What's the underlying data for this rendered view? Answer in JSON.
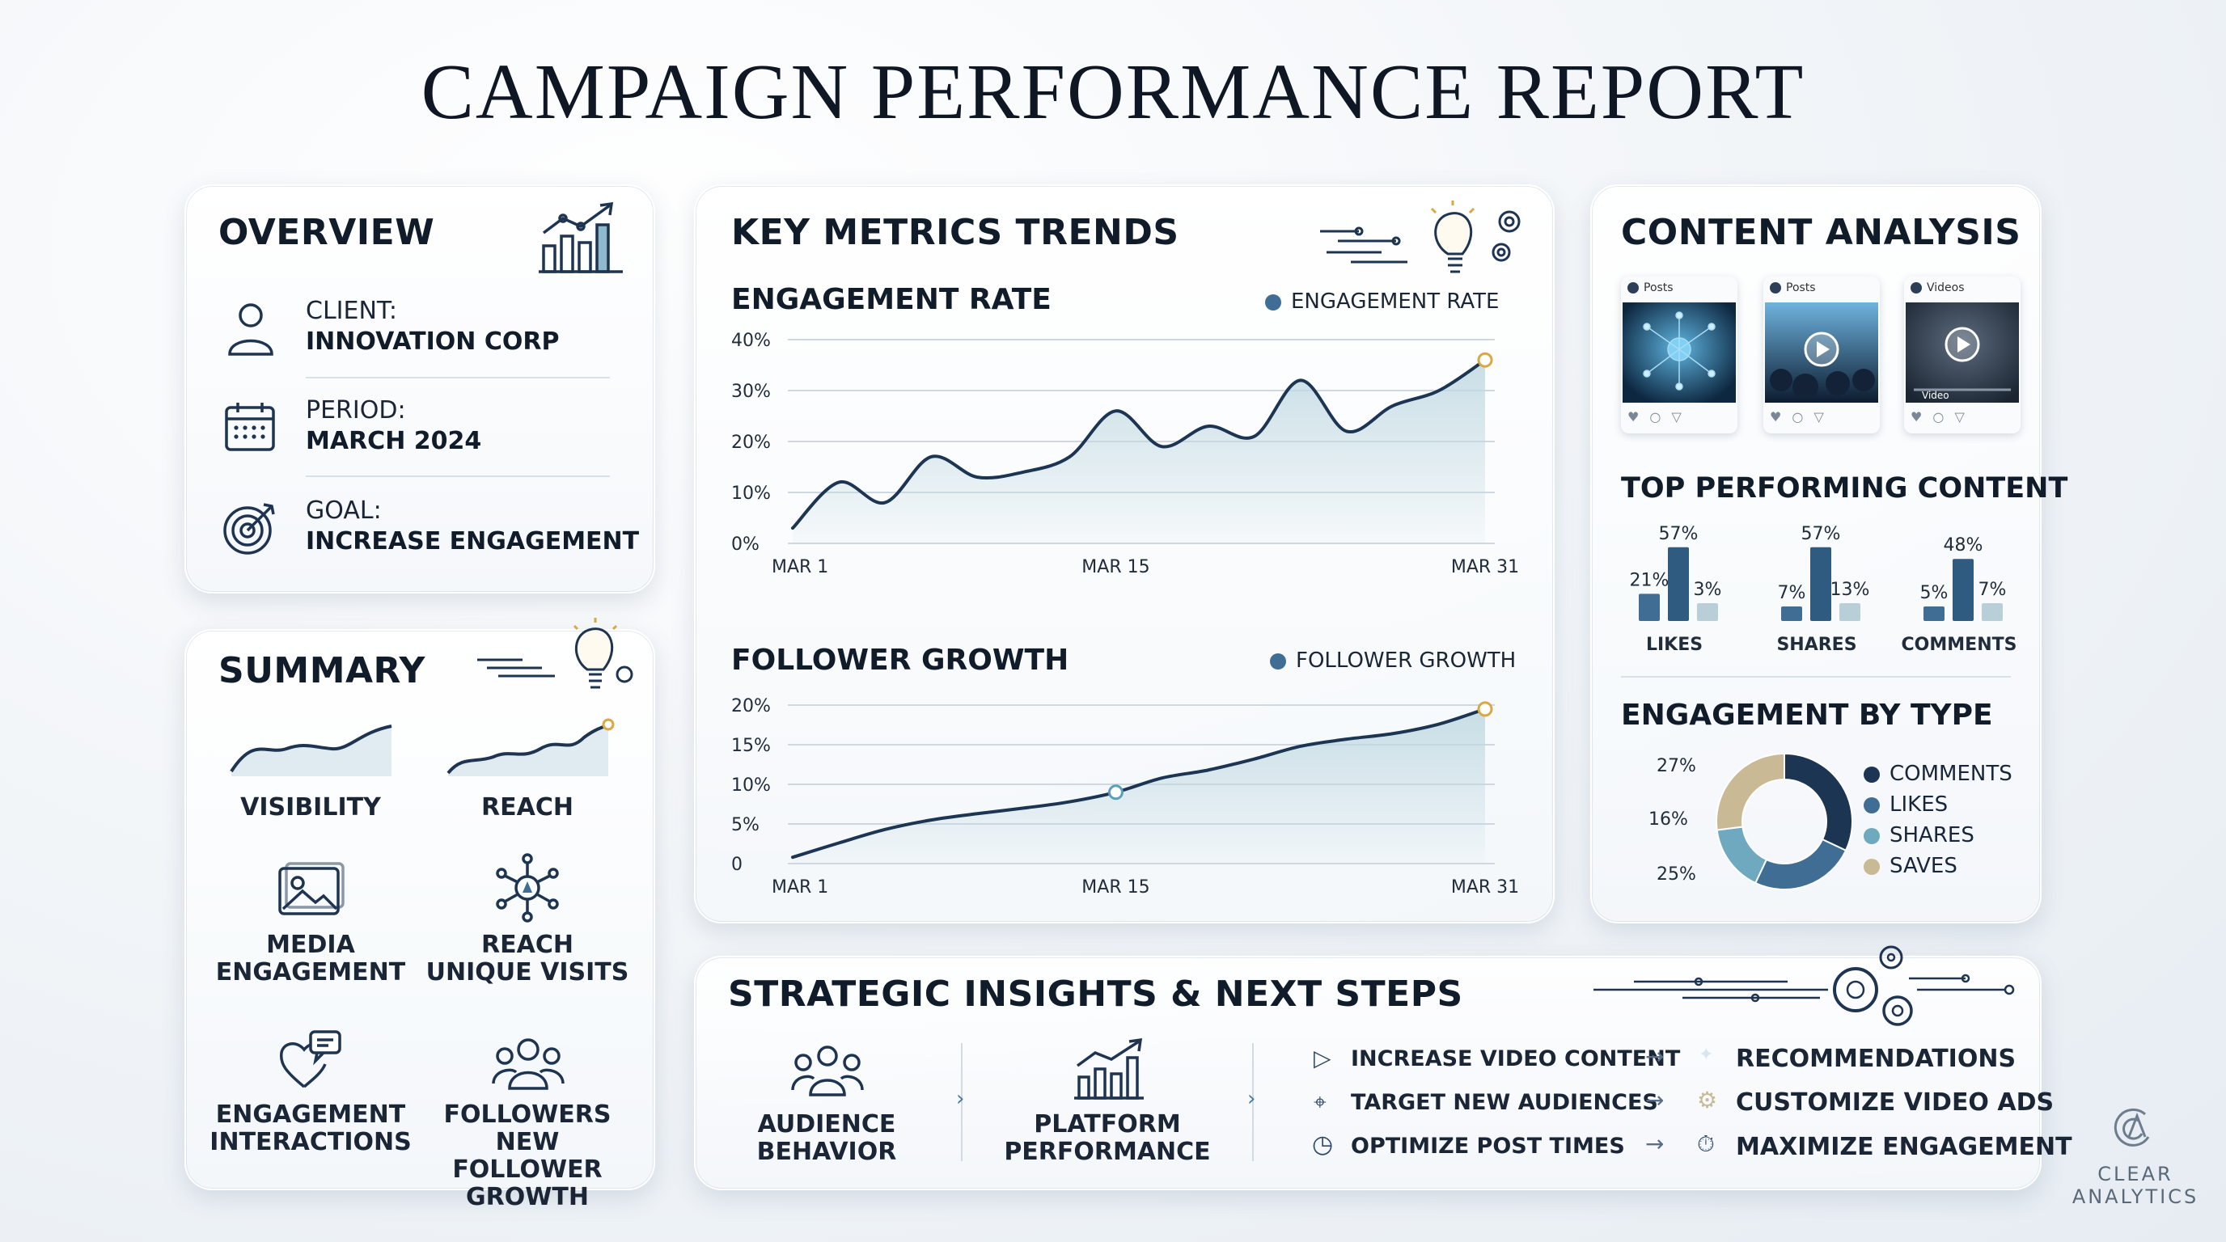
{
  "title": "CAMPAIGN PERFORMANCE REPORT",
  "overview": {
    "heading": "OVERVIEW",
    "client_label": "CLIENT:",
    "client_value": "INNOVATION CORP",
    "period_label": "PERIOD:",
    "period_value": "MARCH 2024",
    "goal_label": "GOAL:",
    "goal_value": "INCREASE ENGAGEMENT"
  },
  "summary": {
    "heading": "SUMMARY",
    "items": [
      {
        "label": "VISIBILITY"
      },
      {
        "label": "REACH"
      },
      {
        "label": "MEDIA\nENGAGEMENT"
      },
      {
        "label": "REACH\nUNIQUE VISITS"
      },
      {
        "label": "ENGAGEMENT\nINTERACTIONS"
      },
      {
        "label": "FOLLOWERS\nNEW FOLLOWER\nGROWTH"
      }
    ]
  },
  "key_metrics": {
    "heading": "KEY METRICS TRENDS",
    "engagement": {
      "heading": "ENGAGEMENT RATE",
      "legend": "ENGAGEMENT RATE",
      "yticks": [
        "40%",
        "30%",
        "20%",
        "10%",
        "0%"
      ],
      "xticks": [
        "MAR 1",
        "MAR 15",
        "MAR 31"
      ]
    },
    "followers": {
      "heading": "FOLLOWER GROWTH",
      "legend": "FOLLOWER GROWTH",
      "yticks": [
        "20%",
        "15%",
        "10%",
        "5%",
        "0"
      ],
      "xticks": [
        "MAR 1",
        "MAR 15",
        "MAR 31"
      ]
    }
  },
  "content_analysis": {
    "heading": "CONTENT ANALYSIS",
    "thumbnails": [
      {
        "label": "Posts"
      },
      {
        "label": "Posts"
      },
      {
        "label": "Videos",
        "caption": "Video"
      }
    ],
    "top_heading": "TOP PERFORMING CONTENT",
    "top_groups": [
      {
        "label": "LIKES",
        "values": [
          "21%",
          "57%",
          "3%"
        ]
      },
      {
        "label": "SHARES",
        "values": [
          "7%",
          "57%",
          "13%"
        ]
      },
      {
        "label": "COMMENTS",
        "values": [
          "5%",
          "48%",
          "7%"
        ]
      }
    ],
    "type_heading": "ENGAGEMENT BY TYPE",
    "donut_labels": [
      "27%",
      "16%",
      "25%"
    ],
    "legend": [
      "COMMENTS",
      "LIKES",
      "SHARES",
      "SAVES"
    ]
  },
  "insights": {
    "heading": "STRATEGIC INSIGHTS & NEXT STEPS",
    "col1": "AUDIENCE\nBEHAVIOR",
    "col2": "PLATFORM\nPERFORMANCE",
    "actions": [
      "INCREASE VIDEO CONTENT",
      "TARGET NEW AUDIENCES",
      "OPTIMIZE POST TIMES"
    ],
    "results": [
      "RECOMMENDATIONS",
      "CUSTOMIZE VIDEO ADS",
      "MAXIMIZE ENGAGEMENT"
    ]
  },
  "brand": {
    "line1": "CLEAR",
    "line2": "ANALYTICS"
  },
  "colors": {
    "navy": "#1c3553",
    "steel": "#3f6d93",
    "teal": "#6fa9bf",
    "sand": "#c9b995",
    "fill": "#bfd8e1",
    "marker": "#d9a845"
  },
  "chart_data": [
    {
      "type": "area",
      "title": "ENGAGEMENT RATE",
      "series": [
        {
          "name": "ENGAGEMENT RATE",
          "x": [
            1,
            3,
            5,
            7,
            9,
            11,
            13,
            15,
            17,
            19,
            21,
            23,
            25,
            27,
            29,
            31
          ],
          "values": [
            3,
            12,
            8,
            17,
            13,
            14,
            17,
            26,
            19,
            23,
            21,
            32,
            22,
            27,
            30,
            36
          ]
        }
      ],
      "xticks": [
        "MAR 1",
        "MAR 15",
        "MAR 31"
      ],
      "ylim": [
        0,
        40
      ],
      "grid": true,
      "legend": "top-right"
    },
    {
      "type": "area",
      "title": "FOLLOWER GROWTH",
      "series": [
        {
          "name": "FOLLOWER GROWTH",
          "x": [
            1,
            3,
            5,
            7,
            9,
            11,
            13,
            15,
            17,
            19,
            21,
            23,
            25,
            27,
            29,
            31
          ],
          "values": [
            0.8,
            2.6,
            4.3,
            5.5,
            6.3,
            7.0,
            7.8,
            9.0,
            10.8,
            11.8,
            13.2,
            14.8,
            15.7,
            16.4,
            17.6,
            19.5
          ]
        }
      ],
      "xticks": [
        "MAR 1",
        "MAR 15",
        "MAR 31"
      ],
      "ylim": [
        0,
        20
      ],
      "grid": true,
      "legend": "top-right"
    },
    {
      "type": "bar",
      "title": "TOP PERFORMING CONTENT",
      "categories": [
        "LIKES",
        "SHARES",
        "COMMENTS"
      ],
      "series": [
        {
          "values": [
            21,
            7,
            5
          ]
        },
        {
          "values": [
            57,
            57,
            48
          ]
        },
        {
          "values": [
            3,
            13,
            7
          ]
        }
      ]
    },
    {
      "type": "pie",
      "title": "ENGAGEMENT BY TYPE",
      "categories": [
        "COMMENTS",
        "LIKES",
        "SHARES",
        "SAVES"
      ],
      "values": [
        32,
        25,
        16,
        27
      ]
    }
  ]
}
